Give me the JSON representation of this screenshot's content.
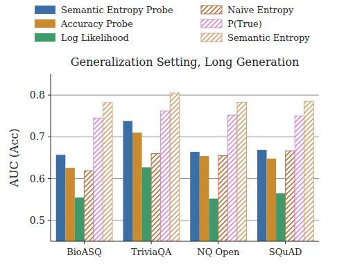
{
  "chart_data": {
    "type": "bar",
    "title": "Generalization Setting, Long Generation",
    "y_label": "AUC (Acc)",
    "categories": [
      "BioASQ",
      "TriviaQA",
      "NQ Open",
      "SQuAD"
    ],
    "series": [
      {
        "name": "Semantic Entropy Probe",
        "color": "#3a6ea5",
        "line_style": "solid",
        "values": [
          0.657,
          0.738,
          0.664,
          0.669
        ]
      },
      {
        "name": "Accuracy Probe",
        "color": "#c98b2e",
        "line_style": "solid",
        "values": [
          0.626,
          0.71,
          0.654,
          0.648
        ]
      },
      {
        "name": "Log Likelihood",
        "color": "#3e9a6b",
        "line_style": "solid",
        "values": [
          0.555,
          0.627,
          0.552,
          0.565
        ]
      },
      {
        "name": "Naive Entropy",
        "color": "#c0703a",
        "line_style": "hatch",
        "values": [
          0.619,
          0.66,
          0.655,
          0.666
        ]
      },
      {
        "name": "P(True)",
        "color": "#d88ad6",
        "line_style": "hatch",
        "values": [
          0.745,
          0.762,
          0.752,
          0.75
        ]
      },
      {
        "name": "Semantic Entropy",
        "color": "#d4a373",
        "line_style": "hatch",
        "values": [
          0.782,
          0.805,
          0.783,
          0.785
        ]
      }
    ],
    "ylim": [
      0.45,
      0.85
    ],
    "yticks": [
      0.5,
      0.6,
      0.7,
      0.8
    ],
    "grid": true,
    "legend": "top"
  }
}
